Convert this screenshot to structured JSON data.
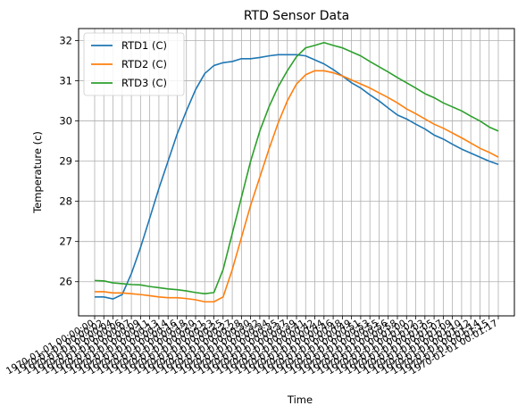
{
  "chart_data": {
    "type": "line",
    "title": "RTD Sensor Data",
    "xlabel": "Time",
    "ylabel": "Temperature (c)",
    "ylim": [
      25.15,
      32.3
    ],
    "yticks": [
      26,
      27,
      28,
      29,
      30,
      31,
      32
    ],
    "grid": true,
    "legend_position": "top-left",
    "x": [
      "1970-01-01 00:00:00",
      "1970-01-01 00:00:02",
      "1970-01-01 00:00:04",
      "1970-01-01 00:00:06",
      "1970-01-01 00:00:07",
      "1970-01-01 00:00:09",
      "1970-01-01 00:00:11",
      "1970-01-01 00:00:13",
      "1970-01-01 00:00:14",
      "1970-01-01 00:00:16",
      "1970-01-01 00:00:18",
      "1970-01-01 00:00:20",
      "1970-01-01 00:00:21",
      "1970-01-01 00:00:23",
      "1970-01-01 00:00:25",
      "1970-01-01 00:00:27",
      "1970-01-01 00:00:28",
      "1970-01-01 00:00:30",
      "1970-01-01 00:00:32",
      "1970-01-01 00:00:34",
      "1970-01-01 00:00:35",
      "1970-01-01 00:00:37",
      "1970-01-01 00:00:39",
      "1970-01-01 00:00:41",
      "1970-01-01 00:00:42",
      "1970-01-01 00:00:44",
      "1970-01-01 00:00:46",
      "1970-01-01 00:00:48",
      "1970-01-01 00:00:49",
      "1970-01-01 00:00:51",
      "1970-01-01 00:00:53",
      "1970-01-01 00:00:55",
      "1970-01-01 00:00:56",
      "1970-01-01 00:00:58",
      "1970-01-01 00:01:00",
      "1970-01-01 00:01:02",
      "1970-01-01 00:01:03",
      "1970-01-01 00:01:05",
      "1970-01-01 00:01:07",
      "1970-01-01 00:01:09",
      "1970-01-01 00:01:10",
      "1970-01-01 00:01:12",
      "1970-01-01 00:01:14",
      "1970-01-01 00:01:15",
      "1970-01-01 00:01:17"
    ],
    "xtick_labels": [
      "1970-01-01 00:00:00",
      "1970-01-01 00:00:02",
      "1970-01-01 00:00:04",
      "1970-01-01 00:00:06",
      "1970-01-01 00:00:07",
      "1970-01-01 00:00:09",
      "1970-01-01 00:00:11",
      "1970-01-01 00:00:13",
      "1970-01-01 00:00:14",
      "1970-01-01 00:00:16",
      "1970-01-01 00:00:18",
      "1970-01-01 00:00:20",
      "1970-01-01 00:00:21",
      "1970-01-01 00:00:23",
      "1970-01-01 00:00:25",
      "1970-01-01 00:00:27",
      "1970-01-01 00:00:28",
      "1970-01-01 00:00:30",
      "1970-01-01 00:00:32",
      "1970-01-01 00:00:34",
      "1970-01-01 00:00:35",
      "1970-01-01 00:00:37",
      "1970-01-01 00:00:39",
      "1970-01-01 00:00:41",
      "1970-01-01 00:00:42",
      "1970-01-01 00:00:44",
      "1970-01-01 00:00:46",
      "1970-01-01 00:00:48",
      "1970-01-01 00:00:49",
      "1970-01-01 00:00:51",
      "1970-01-01 00:00:53",
      "1970-01-01 00:00:55",
      "1970-01-01 00:00:56",
      "1970-01-01 00:00:58",
      "1970-01-01 00:01:00",
      "1970-01-01 00:01:02",
      "1970-01-01 00:01:03",
      "1970-01-01 00:01:05",
      "1970-01-01 00:01:07",
      "1970-01-01 00:01:09",
      "1970-01-01 00:01:10",
      "1970-01-01 00:01:12",
      "1970-01-01 00:01:14",
      "1970-01-01 00:01:15",
      "1970-01-01 00:01:17"
    ],
    "series": [
      {
        "name": "RTD1 (C)",
        "color": "#1f77b4",
        "values": [
          25.62,
          25.62,
          25.57,
          25.68,
          26.2,
          26.85,
          27.58,
          28.32,
          29.0,
          29.68,
          30.25,
          30.78,
          31.18,
          31.38,
          31.45,
          31.48,
          31.55,
          31.55,
          31.58,
          31.62,
          31.65,
          31.65,
          31.65,
          31.62,
          31.52,
          31.42,
          31.28,
          31.12,
          30.95,
          30.82,
          30.65,
          30.5,
          30.32,
          30.15,
          30.05,
          29.92,
          29.8,
          29.65,
          29.55,
          29.42,
          29.3,
          29.2,
          29.1,
          29.0,
          28.92
        ]
      },
      {
        "name": "RTD2 (C)",
        "color": "#ff7f0e",
        "values": [
          25.75,
          25.75,
          25.72,
          25.72,
          25.7,
          25.68,
          25.65,
          25.62,
          25.6,
          25.6,
          25.58,
          25.55,
          25.5,
          25.5,
          25.62,
          26.3,
          27.1,
          27.9,
          28.6,
          29.3,
          29.95,
          30.5,
          30.92,
          31.15,
          31.25,
          31.25,
          31.2,
          31.12,
          31.02,
          30.92,
          30.82,
          30.7,
          30.58,
          30.45,
          30.3,
          30.18,
          30.05,
          29.92,
          29.82,
          29.7,
          29.58,
          29.45,
          29.32,
          29.22,
          29.1
        ]
      },
      {
        "name": "RTD3 (C)",
        "color": "#2ca02c",
        "values": [
          26.03,
          26.02,
          25.97,
          25.95,
          25.93,
          25.92,
          25.88,
          25.85,
          25.82,
          25.8,
          25.77,
          25.73,
          25.7,
          25.73,
          26.3,
          27.2,
          28.1,
          29.0,
          29.75,
          30.35,
          30.85,
          31.25,
          31.6,
          31.82,
          31.88,
          31.95,
          31.88,
          31.82,
          31.72,
          31.62,
          31.48,
          31.35,
          31.22,
          31.08,
          30.95,
          30.82,
          30.68,
          30.58,
          30.45,
          30.35,
          30.25,
          30.12,
          30.0,
          29.85,
          29.75
        ]
      }
    ]
  }
}
